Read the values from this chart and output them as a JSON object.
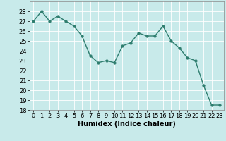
{
  "x": [
    0,
    1,
    2,
    3,
    4,
    5,
    6,
    7,
    8,
    9,
    10,
    11,
    12,
    13,
    14,
    15,
    16,
    17,
    18,
    19,
    20,
    21,
    22,
    23
  ],
  "y": [
    27,
    28,
    27,
    27.5,
    27,
    26.5,
    25.5,
    23.5,
    22.8,
    23,
    22.8,
    24.5,
    24.8,
    25.8,
    25.5,
    25.5,
    26.5,
    25,
    24.3,
    23.3,
    23,
    20.5,
    18.5,
    18.5
  ],
  "line_color": "#2e7d6e",
  "marker_color": "#2e7d6e",
  "bg_color": "#c8eaea",
  "grid_color": "#ffffff",
  "xlabel": "Humidex (Indice chaleur)",
  "ylim": [
    18,
    29
  ],
  "xlim": [
    -0.5,
    23.5
  ],
  "yticks": [
    18,
    19,
    20,
    21,
    22,
    23,
    24,
    25,
    26,
    27,
    28
  ],
  "xticks": [
    0,
    1,
    2,
    3,
    4,
    5,
    6,
    7,
    8,
    9,
    10,
    11,
    12,
    13,
    14,
    15,
    16,
    17,
    18,
    19,
    20,
    21,
    22,
    23
  ],
  "tick_fontsize": 6,
  "xlabel_fontsize": 7,
  "linewidth": 1.0,
  "markersize": 2.5
}
